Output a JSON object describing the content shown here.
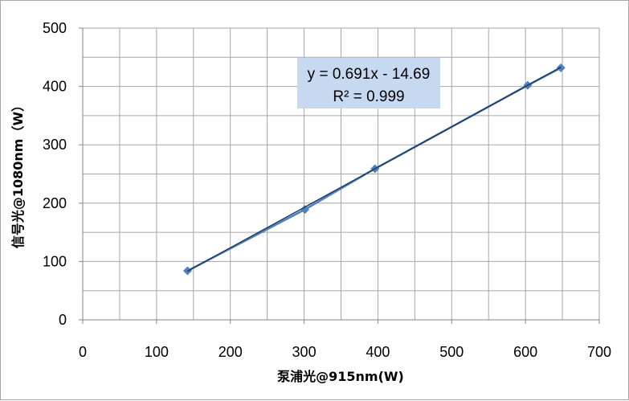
{
  "chart_data": {
    "type": "scatter",
    "xlabel": "泵浦光@915nm(W)",
    "ylabel": "信号光@1080nm（W）",
    "xlim": [
      0,
      700
    ],
    "ylim": [
      0,
      500
    ],
    "x_ticks": [
      0,
      100,
      200,
      300,
      400,
      500,
      600,
      700
    ],
    "y_ticks": [
      0,
      100,
      200,
      300,
      400,
      500
    ],
    "x_minor_step": 50,
    "y_minor_step": 50,
    "grid": true,
    "legend": "none",
    "series": [
      {
        "color": "#4f81bd",
        "marker": "diamond",
        "line": true,
        "x": [
          142,
          301,
          396,
          603,
          648
        ],
        "y": [
          84,
          189,
          259,
          402,
          432
        ]
      }
    ],
    "trendline": {
      "type": "linear",
      "slope": 0.691,
      "intercept": -14.69,
      "r_squared": 0.999,
      "color": "#1f3a5f",
      "x_range": [
        142,
        648
      ]
    },
    "annotation": {
      "equation": "y = 0.691x - 14.69",
      "r_squared_text": "R² = 0.999",
      "background": "#c6d9f1"
    }
  }
}
